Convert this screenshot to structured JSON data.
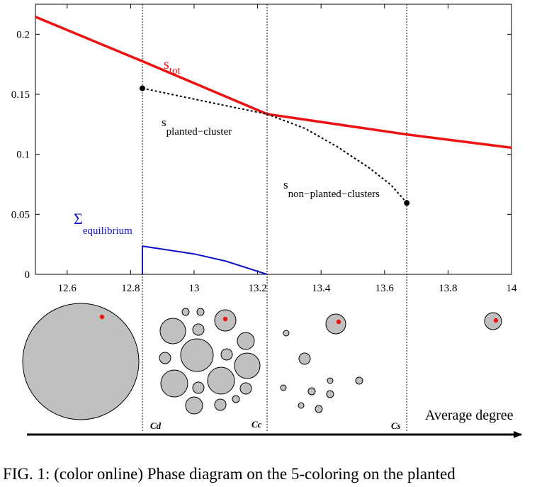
{
  "chart_data": {
    "type": "line",
    "xlim": [
      12.5,
      14.0
    ],
    "ylim": [
      0,
      0.225
    ],
    "x_ticks": [
      "12.6",
      "12.8",
      "13",
      "13.2",
      "13.4",
      "13.6",
      "13.8",
      "14"
    ],
    "x_tick_values": [
      12.6,
      12.8,
      13.0,
      13.2,
      13.4,
      13.6,
      13.8,
      14.0
    ],
    "y_ticks": [
      "0",
      "0.05",
      "0.1",
      "0.15",
      "0.2"
    ],
    "y_tick_values": [
      0,
      0.05,
      0.1,
      0.15,
      0.2
    ],
    "grid": false,
    "vlines": [
      12.837,
      13.23,
      13.67
    ],
    "series": [
      {
        "key": "s_tot",
        "label_main": "s",
        "label_sub": "tot",
        "color": "#ee1111",
        "style": "solid",
        "points": [
          [
            12.5,
            0.2145
          ],
          [
            12.837,
            0.1775
          ],
          [
            13.23,
            0.1335
          ],
          [
            13.67,
            0.1165
          ],
          [
            14.0,
            0.1055
          ]
        ]
      },
      {
        "key": "s_planted_cluster",
        "label_main": "s",
        "label_sub": "planted−cluster",
        "color": "#000000",
        "style": "dotted",
        "points": [
          [
            12.837,
            0.155
          ],
          [
            13.0,
            0.146
          ],
          [
            13.1,
            0.1405
          ],
          [
            13.23,
            0.1335
          ]
        ]
      },
      {
        "key": "s_non_planted_clusters",
        "label_main": "s",
        "label_sub": "non−planted−clusters",
        "color": "#000000",
        "style": "dotted",
        "points": [
          [
            13.23,
            0.1335
          ],
          [
            13.35,
            0.1215
          ],
          [
            13.45,
            0.1065
          ],
          [
            13.55,
            0.089
          ],
          [
            13.62,
            0.0745
          ],
          [
            13.67,
            0.0595
          ]
        ]
      },
      {
        "key": "sigma_equilibrium",
        "label_main": "Σ",
        "label_sub": "equilibrium",
        "color": "#1111cc",
        "style": "solid",
        "points": [
          [
            12.837,
            0.0
          ],
          [
            12.837,
            0.0235
          ],
          [
            13.0,
            0.017
          ],
          [
            13.1,
            0.011
          ],
          [
            13.23,
            0.0
          ]
        ]
      }
    ],
    "markers": [
      {
        "x": 12.837,
        "y": 0.155
      },
      {
        "x": 13.67,
        "y": 0.0595
      }
    ]
  },
  "schematic": {
    "thresholds": [
      "Cd",
      "Cc",
      "Cs"
    ],
    "axis_label": "Average degree",
    "gray": "#c0c0c0",
    "red": "#ee1111"
  },
  "caption": "FIG. 1: (color online) Phase diagram on the 5-coloring on the planted"
}
